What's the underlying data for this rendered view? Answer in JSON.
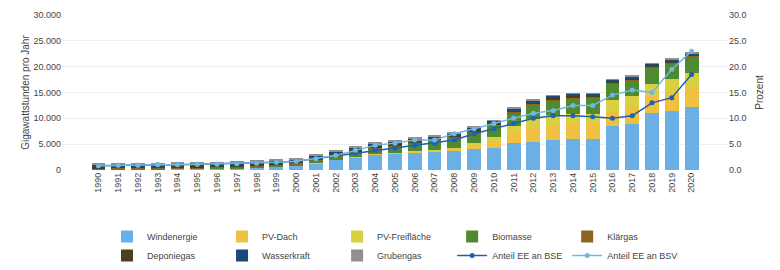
{
  "chart_data": {
    "type": "bar",
    "stacked": true,
    "grid": true,
    "legend": "bottom",
    "ylabel": "Gigawattstunden pro Jahr",
    "y2label": "Prozent",
    "categories": [
      1990,
      1991,
      1992,
      1993,
      1994,
      1995,
      1996,
      1997,
      1998,
      1999,
      2000,
      2001,
      2002,
      2003,
      2004,
      2005,
      2006,
      2007,
      2008,
      2009,
      2010,
      2011,
      2012,
      2013,
      2014,
      2015,
      2016,
      2017,
      2018,
      2019,
      2020
    ],
    "series": [
      {
        "name": "Windenergie",
        "color": "#6aafe6",
        "values": [
          100,
          130,
          160,
          190,
          220,
          270,
          320,
          380,
          500,
          650,
          850,
          1300,
          2000,
          2500,
          3000,
          3200,
          3400,
          3500,
          3600,
          4000,
          4200,
          5200,
          5500,
          5800,
          6000,
          6000,
          8500,
          9000,
          11000,
          11500,
          12200
        ]
      },
      {
        "name": "PV-Dach",
        "color": "#f0c040",
        "values": [
          0,
          0,
          0,
          0,
          0,
          0,
          0,
          0,
          0,
          0,
          5,
          10,
          20,
          40,
          70,
          120,
          200,
          350,
          600,
          900,
          1500,
          2200,
          2700,
          2900,
          2900,
          2900,
          3000,
          3100,
          3300,
          3500,
          3700
        ]
      },
      {
        "name": "PV-Freifläche",
        "color": "#d8d040",
        "values": [
          0,
          0,
          0,
          0,
          0,
          0,
          0,
          0,
          0,
          0,
          0,
          0,
          0,
          0,
          0,
          0,
          30,
          70,
          150,
          350,
          650,
          1100,
          1700,
          1900,
          2000,
          2000,
          2100,
          2200,
          2400,
          2600,
          2900
        ]
      },
      {
        "name": "Biomasse",
        "color": "#4e8a30",
        "values": [
          50,
          55,
          60,
          65,
          70,
          80,
          90,
          110,
          150,
          200,
          300,
          450,
          650,
          850,
          1050,
          1250,
          1450,
          1650,
          1850,
          2050,
          2250,
          2500,
          2700,
          2900,
          3000,
          3050,
          3050,
          3050,
          3100,
          3100,
          3100
        ]
      },
      {
        "name": "Klärgas",
        "color": "#8b6420",
        "values": [
          200,
          210,
          215,
          220,
          220,
          225,
          230,
          235,
          240,
          240,
          245,
          250,
          250,
          250,
          250,
          248,
          245,
          242,
          240,
          238,
          235,
          232,
          228,
          225,
          220,
          215,
          210,
          205,
          200,
          195,
          190
        ]
      },
      {
        "name": "Deponiegas",
        "color": "#4a4020",
        "values": [
          150,
          160,
          170,
          175,
          180,
          190,
          200,
          210,
          215,
          218,
          220,
          220,
          218,
          215,
          210,
          205,
          195,
          185,
          170,
          160,
          150,
          140,
          130,
          120,
          110,
          100,
          90,
          80,
          75,
          68,
          60
        ]
      },
      {
        "name": "Wasserkraft",
        "color": "#1a4a78",
        "values": [
          500,
          510,
          490,
          500,
          490,
          500,
          480,
          490,
          500,
          490,
          500,
          490,
          510,
          500,
          490,
          500,
          480,
          480,
          490,
          500,
          500,
          490,
          480,
          480,
          480,
          470,
          480,
          470,
          470,
          470,
          470
        ]
      },
      {
        "name": "Grubengas",
        "color": "#909090",
        "values": [
          200,
          210,
          220,
          225,
          230,
          230,
          235,
          230,
          228,
          225,
          222,
          218,
          215,
          210,
          205,
          200,
          195,
          188,
          180,
          170,
          160,
          150,
          140,
          130,
          120,
          110,
          100,
          90,
          82,
          74,
          65
        ]
      },
      {
        "name": "Anteil EE an BSE",
        "type": "line",
        "axis": "y2",
        "marker": "circle",
        "line_style": "solid",
        "color": "#2060b0",
        "values": [
          0.8,
          0.9,
          0.9,
          1.0,
          1.0,
          1.1,
          1.1,
          1.2,
          1.3,
          1.5,
          1.7,
          2.2,
          2.8,
          3.3,
          3.8,
          4.2,
          4.8,
          5.2,
          5.8,
          7.0,
          8.0,
          9.0,
          10.0,
          10.5,
          10.5,
          10.3,
          10.0,
          10.5,
          13.0,
          14.0,
          18.5
        ]
      },
      {
        "name": "Anteil EE an BSV",
        "type": "line",
        "axis": "y2",
        "marker": "circle",
        "line_style": "solid",
        "color": "#70b8e0",
        "values": [
          0.8,
          0.9,
          0.9,
          1.0,
          1.0,
          1.1,
          1.1,
          1.2,
          1.3,
          1.5,
          1.7,
          2.2,
          2.8,
          3.8,
          4.8,
          5.2,
          5.8,
          5.8,
          7.0,
          8.0,
          9.0,
          10.0,
          11.0,
          11.5,
          12.5,
          12.5,
          14.5,
          15.5,
          15.0,
          19.5,
          23.0
        ]
      }
    ],
    "ylim": [
      0,
      30000
    ],
    "yticks": [
      0,
      {
        "value": 5000,
        "label": "5.000"
      },
      {
        "value": 10000,
        "label": "10.000"
      },
      {
        "value": 15000,
        "label": "15.000"
      },
      {
        "value": 20000,
        "label": "20.000"
      },
      {
        "value": 25000,
        "label": "25.000"
      },
      {
        "value": 30000,
        "label": "30.000"
      }
    ],
    "y2lim": [
      0,
      30.0
    ],
    "y2ticks": [
      {
        "value": 0.0,
        "label": "0.0"
      },
      {
        "value": 5.0,
        "label": "5.0"
      },
      {
        "value": 10.0,
        "label": "10.0"
      },
      {
        "value": 15.0,
        "label": "15.0"
      },
      {
        "value": 20.0,
        "label": "20.0"
      },
      {
        "value": 25.0,
        "label": "25.0"
      },
      {
        "value": 30.0,
        "label": "30.0"
      }
    ]
  }
}
